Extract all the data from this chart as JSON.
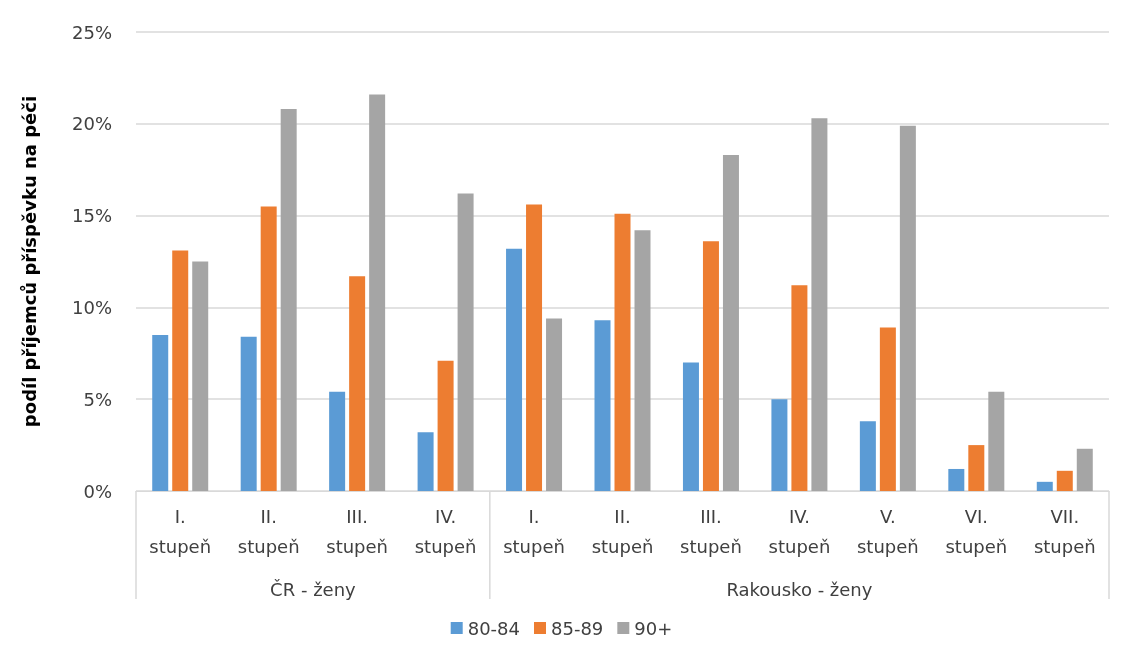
{
  "chart_data": {
    "type": "bar",
    "ylabel": "podíl příjemců příspěvku na péči",
    "categories": [
      "I.\nstupeň",
      "II.\nstupeň",
      "III.\nstupeň",
      "IV.\nstupeň",
      "I.\nstupeň",
      "II.\nstupeň",
      "III.\nstupeň",
      "IV.\nstupeň",
      "V.\nstupeň",
      "VI.\nstupeň",
      "VII.\nstupeň"
    ],
    "series": [
      {
        "name": "80-84",
        "color": "#5b9bd5",
        "values": [
          8.5,
          8.4,
          5.4,
          3.2,
          13.2,
          9.3,
          7.0,
          5.0,
          3.8,
          1.2,
          0.5
        ]
      },
      {
        "name": "85-89",
        "color": "#ed7d31",
        "values": [
          13.1,
          15.5,
          11.7,
          7.1,
          15.6,
          15.1,
          13.6,
          11.2,
          8.9,
          2.5,
          1.1
        ]
      },
      {
        "name": "90+",
        "color": "#a5a5a5",
        "values": [
          12.5,
          20.8,
          21.6,
          16.2,
          9.4,
          14.2,
          18.3,
          20.3,
          19.9,
          5.4,
          2.3
        ]
      }
    ],
    "ylim": [
      0,
      25
    ],
    "yticks": [
      {
        "value": 0,
        "label": "0%"
      },
      {
        "value": 5,
        "label": "5%"
      },
      {
        "value": 10,
        "label": "10%"
      },
      {
        "value": 15,
        "label": "15%"
      },
      {
        "value": 20,
        "label": "20%"
      },
      {
        "value": 25,
        "label": "25%"
      }
    ],
    "grid": "y",
    "legend": "bottom",
    "annotations": [
      "ČR - ženy",
      "Rakousko - ženy"
    ]
  }
}
